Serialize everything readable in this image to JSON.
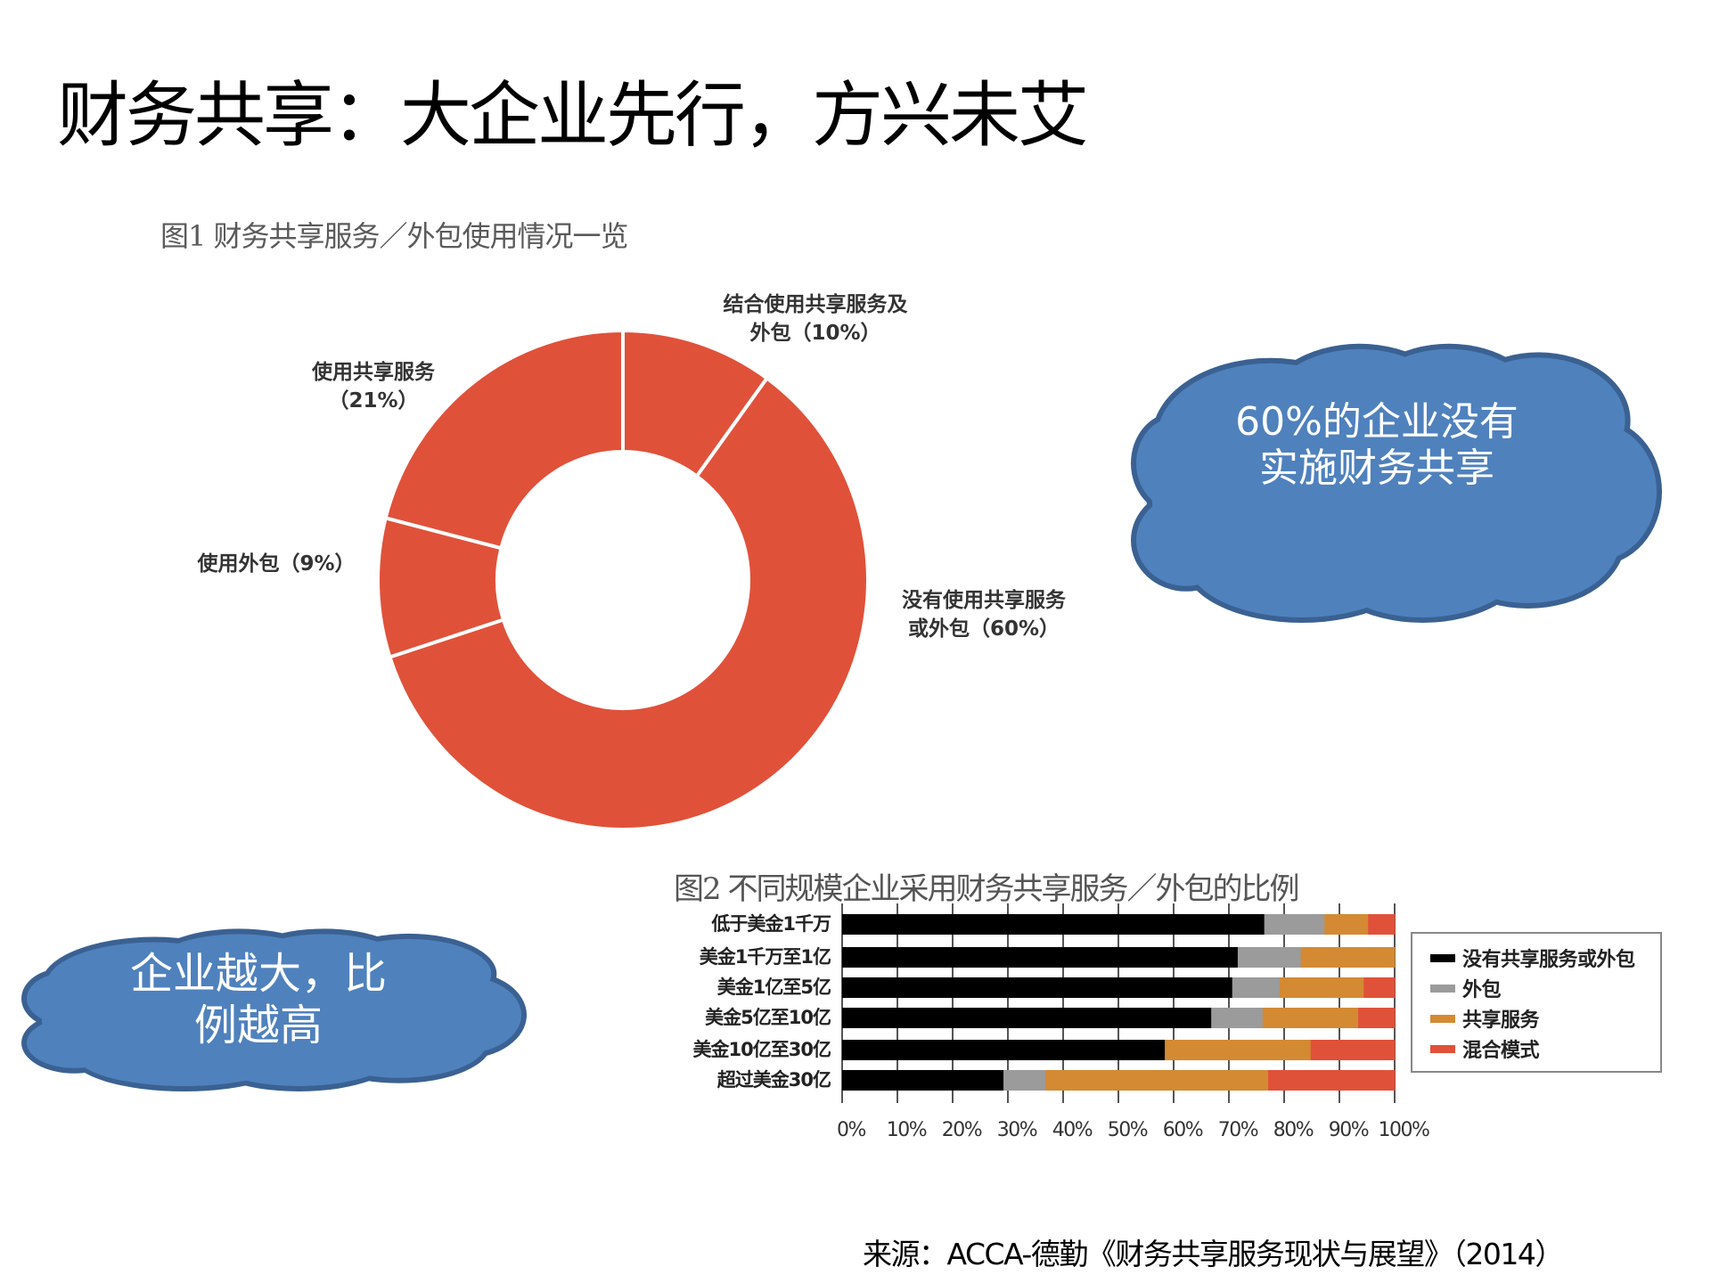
{
  "page": {
    "title": "财务共享：大企业先行，方兴未艾",
    "source": "来源：ACCA-德勤《财务共享服务现状与展望》（2014）"
  },
  "colors": {
    "pie": "#E0513A",
    "cloud_fill": "#4F81BD",
    "cloud_stroke": "#3A6192",
    "bar_none": "#000000",
    "bar_outsource": "#9B9B9B",
    "bar_shared": "#D38A33",
    "bar_mixed": "#E0513A"
  },
  "callouts": {
    "top_right": {
      "line1": "60%的企业没有",
      "line2": "实施财务共享"
    },
    "bottom_left": {
      "line1": "企业越大，比",
      "line2": "例越高"
    }
  },
  "fig1": {
    "caption": "图1 财务共享服务／外包使用情况一览",
    "labels": {
      "combined": {
        "line1": "结合使用共享服务及",
        "line2": "外包（10%）"
      },
      "none": {
        "line1": "没有使用共享服务",
        "line2": "或外包（60%）"
      },
      "outsource": {
        "line1": "使用外包（9%）"
      },
      "shared": {
        "line1": "使用共享服务",
        "line2": "（21%）"
      }
    }
  },
  "fig2": {
    "title": "图2 不同规模企业采用财务共享服务／外包的比例",
    "tick_labels": [
      "0%",
      "10%",
      "20%",
      "30%",
      "40%",
      "50%",
      "60%",
      "70%",
      "80%",
      "90%",
      "100%"
    ],
    "legend": [
      "没有共享服务或外包",
      "外包",
      "共享服务",
      "混合模式"
    ]
  },
  "chart_data": [
    {
      "type": "pie",
      "title": "图1 财务共享服务／外包使用情况一览",
      "style": "donut",
      "categories": [
        "结合使用共享服务及外包",
        "没有使用共享服务或外包",
        "使用外包",
        "使用共享服务"
      ],
      "values": [
        10,
        60,
        9,
        21
      ],
      "unit": "%",
      "color": "#E0513A",
      "start_angle": "12 o'clock, clockwise"
    },
    {
      "type": "bar",
      "orientation": "horizontal",
      "stacked": true,
      "title": "图2 不同规模企业采用财务共享服务／外包的比例",
      "categories": [
        "低于美金1千万",
        "美金1千万至1亿",
        "美金1亿至5亿",
        "美金5亿至10亿",
        "美金10亿至30亿",
        "超过美金30亿"
      ],
      "series": [
        {
          "name": "没有共享服务或外包",
          "color": "#000000",
          "values": [
            76.4,
            71.6,
            70.6,
            66.8,
            58.4,
            29.2
          ]
        },
        {
          "name": "外包",
          "color": "#9B9B9B",
          "values": [
            10.9,
            11.4,
            8.6,
            9.3,
            0,
            7.6
          ]
        },
        {
          "name": "共享服务",
          "color": "#D38A33",
          "values": [
            7.9,
            17.0,
            15.2,
            17.3,
            26.4,
            40.3
          ]
        },
        {
          "name": "混合模式",
          "color": "#E0513A",
          "values": [
            4.8,
            0,
            5.6,
            6.6,
            15.2,
            22.9
          ]
        }
      ],
      "xlabel": "",
      "ylabel": "",
      "xlim": [
        0,
        100
      ],
      "x_ticks": [
        "0%",
        "10%",
        "20%",
        "30%",
        "40%",
        "50%",
        "60%",
        "70%",
        "80%",
        "90%",
        "100%"
      ],
      "grid": "vertical",
      "legend_position": "right"
    }
  ]
}
